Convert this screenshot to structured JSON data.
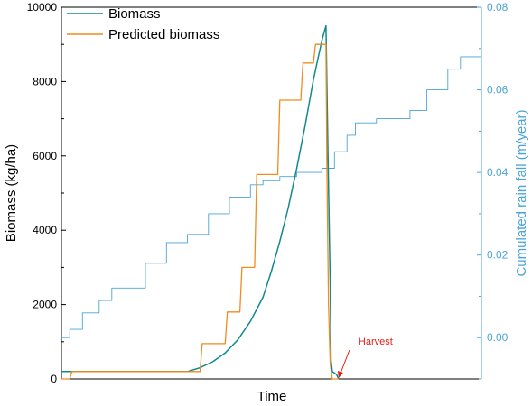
{
  "chart_data": {
    "type": "line",
    "title": "",
    "xlabel": "Time",
    "ylabel": "Biomass (kg/ha)",
    "y2label": "Cumulated rain fall (m/year)",
    "ylim": [
      0,
      10000
    ],
    "y2lim": [
      -0.01,
      0.08
    ],
    "yticks": [
      "0",
      "2000",
      "4000",
      "6000",
      "8000",
      "10000"
    ],
    "y2ticks": [
      "0.00",
      "0.02",
      "0.04",
      "0.06",
      "0.08"
    ],
    "grid": false,
    "legend_position": "top-left",
    "colors": {
      "biomass": "#12898f",
      "predicted": "#f28a1e",
      "rain": "#4aa3d8",
      "harvest": "#e0201a",
      "axis": "#000000",
      "right_axis": "#4aa3d8"
    },
    "annotation": {
      "text": "Harvest"
    },
    "series": [
      {
        "name": "Biomass",
        "axis": "left",
        "x": [
          0.0,
          0.02,
          0.03,
          0.3,
          0.33,
          0.36,
          0.39,
          0.42,
          0.45,
          0.48,
          0.5,
          0.52,
          0.54,
          0.56,
          0.58,
          0.6,
          0.62,
          0.63,
          0.635,
          0.64,
          0.642,
          0.645,
          0.655,
          0.66
        ],
        "values": [
          200,
          200,
          200,
          200,
          300,
          460,
          700,
          1050,
          1550,
          2200,
          2900,
          3700,
          4600,
          5650,
          6800,
          8050,
          9100,
          9500,
          5800,
          2500,
          500,
          200,
          120,
          0
        ]
      },
      {
        "name": "Predicted biomass",
        "axis": "left",
        "x": [
          0.0,
          0.02,
          0.025,
          0.33,
          0.335,
          0.39,
          0.395,
          0.425,
          0.43,
          0.46,
          0.465,
          0.515,
          0.52,
          0.57,
          0.575,
          0.6,
          0.605,
          0.63,
          0.632,
          0.636,
          0.64,
          0.645,
          0.66
        ],
        "values": [
          0,
          0,
          200,
          200,
          950,
          950,
          1800,
          1800,
          3000,
          3000,
          5500,
          5500,
          7500,
          7500,
          8500,
          8500,
          9000,
          9000,
          5800,
          2000,
          400,
          0,
          0
        ]
      },
      {
        "name": "Cumulated rain fall",
        "axis": "right",
        "x": [
          0.0,
          0.02,
          0.05,
          0.09,
          0.12,
          0.2,
          0.25,
          0.3,
          0.35,
          0.4,
          0.45,
          0.48,
          0.52,
          0.56,
          0.6,
          0.62,
          0.65,
          0.68,
          0.7,
          0.75,
          0.8,
          0.83,
          0.87,
          0.92,
          0.95,
          1.0
        ],
        "values": [
          0.0,
          0.002,
          0.006,
          0.009,
          0.012,
          0.018,
          0.023,
          0.025,
          0.03,
          0.034,
          0.037,
          0.038,
          0.039,
          0.04,
          0.04,
          0.041,
          0.045,
          0.049,
          0.052,
          0.053,
          0.053,
          0.055,
          0.06,
          0.065,
          0.068,
          0.071
        ]
      }
    ]
  }
}
